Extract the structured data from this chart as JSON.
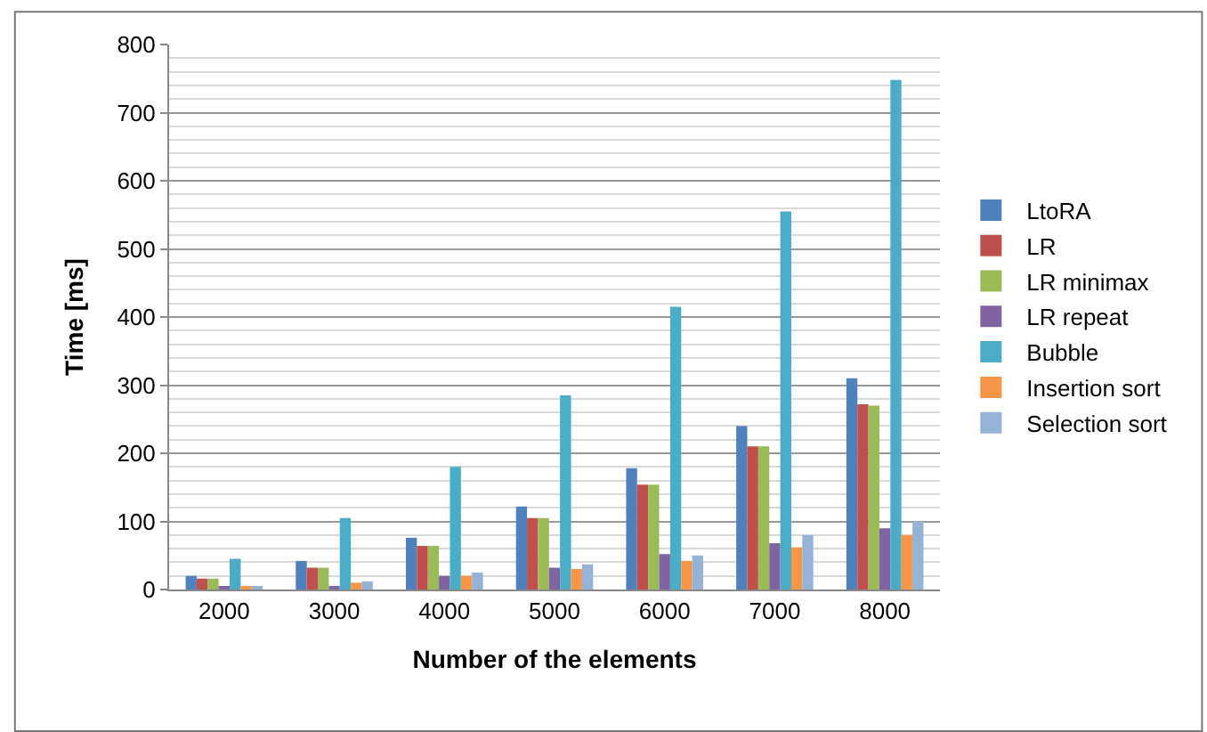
{
  "chart_data": {
    "type": "bar",
    "xlabel": "Number of the elements",
    "ylabel": "Time [ms]",
    "categories": [
      "2000",
      "3000",
      "4000",
      "5000",
      "6000",
      "7000",
      "8000"
    ],
    "series": [
      {
        "name": "LtoRA",
        "color": "#4f81bd",
        "values": [
          20,
          42,
          76,
          122,
          178,
          240,
          310
        ]
      },
      {
        "name": "LR",
        "color": "#c0504d",
        "values": [
          16,
          32,
          64,
          105,
          154,
          210,
          272
        ]
      },
      {
        "name": "LR minimax",
        "color": "#9bbb59",
        "values": [
          16,
          32,
          64,
          105,
          154,
          210,
          270
        ]
      },
      {
        "name": "LR repeat",
        "color": "#8064a2",
        "values": [
          5,
          5,
          20,
          32,
          52,
          68,
          90
        ]
      },
      {
        "name": "Bubble",
        "color": "#4bacc6",
        "values": [
          45,
          105,
          180,
          285,
          415,
          555,
          748
        ]
      },
      {
        "name": "Insertion sort",
        "color": "#f79646",
        "values": [
          4,
          10,
          20,
          30,
          42,
          62,
          80
        ]
      },
      {
        "name": "Selection sort",
        "color": "#95b3d7",
        "values": [
          5,
          12,
          25,
          37,
          50,
          80,
          100
        ]
      }
    ],
    "ylim": [
      0,
      800
    ],
    "yticks": [
      0,
      100,
      200,
      300,
      400,
      500,
      600,
      700,
      800
    ],
    "grid": "y",
    "legend": "right"
  }
}
